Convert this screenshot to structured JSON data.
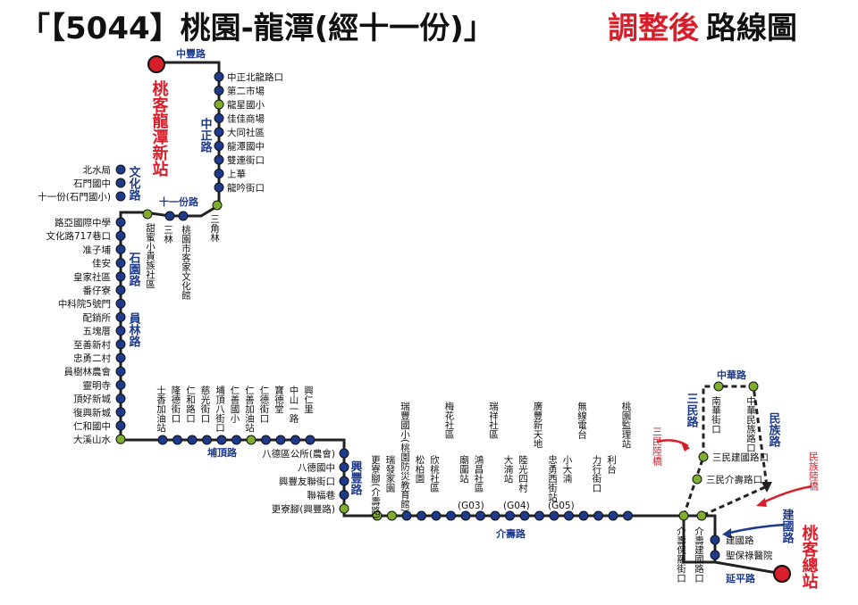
{
  "title": {
    "prefix": "「【5044】桃園-龍潭(經十一份)」",
    "highlight": "調整後",
    "suffix": "路線圖"
  },
  "terminals": {
    "start": "桃客龍潭新站",
    "end": "桃客總站"
  },
  "roads": {
    "zhongfeng": "中豐路",
    "zhongzheng": "中正路",
    "shiyifen": "十一份路",
    "wenhua": "文化路",
    "shiyuan": "石園路",
    "yuanlin": "員林路",
    "puding": "埔頂路",
    "xingfeng": "興豐路",
    "jieshou": "介壽路",
    "zhonghua": "中華路",
    "sanmin": "三民路",
    "minzu": "民族路",
    "jianguo": "建國路",
    "yanping": "延平路"
  },
  "stops": {
    "zhongzheng": [
      "中正北龍路口",
      "第二市場",
      "龍星國小",
      "佳佳商場",
      "大同社區",
      "龍潭國中",
      "雙連街口",
      "上華",
      "龍吟街口"
    ],
    "shiyifen_bottom": [
      "三角林",
      "桃園市客家文化館",
      "三林",
      "甜蜜小貴族社區"
    ],
    "wenhua": [
      "北水局",
      "石門國中",
      "十一份(石門國小)"
    ],
    "shiyuan_yuanlin": [
      "路亞國際中學",
      "文化路717巷口",
      "准子埔",
      "佳安",
      "皇家社區",
      "番仔寮",
      "中科院5號門",
      "配銷所",
      "五塊厝",
      "至善新村",
      "忠勇二村",
      "員樹林農會",
      "靈明寺",
      "頂好新城",
      "復興新城",
      "仁和國中",
      "大溪山水"
    ],
    "puding": [
      "士香加油站",
      "隆德街口",
      "仁和路口",
      "慈光街口",
      "埔頂八街口",
      "仁善國小",
      "仁善加油站",
      "仁德街口",
      "寶德堂",
      "中山一路",
      "興仁里"
    ],
    "xingfeng": [
      "八德區公所(農會)",
      "八德國中",
      "興豐友聯街口",
      "聯福巷",
      "更寮腳(興豐路)"
    ],
    "jieshou": [
      "更寮腳(介壽路)",
      "瑞發家園",
      "瑞豐國小(桃園防災教育館)",
      "松柏園",
      "欣桃社區",
      "梅花社區",
      "廟圍站",
      "鴻昌社區",
      "瑞祥社區",
      "大湳站",
      "陸光四村",
      "廣豐新天地",
      "忠勇西街站",
      "小大湳",
      "無線電台",
      "力行街口",
      "利台",
      "桃園監理站"
    ],
    "jieshou_codes": [
      "(G03)",
      "(G04)",
      "(G05)"
    ],
    "east": [
      "介壽保羅街口",
      "介壽建國路口",
      "建國路",
      "聖保祿醫院",
      "三民介壽路口",
      "三民建國路口",
      "南華街口",
      "中華民族路口"
    ]
  },
  "notes": {
    "sanmin_bridge": "三民陸橋",
    "minzu_bridge": "民族陸橋"
  },
  "colors": {
    "route": "#222222",
    "stop": "#1e3a8a",
    "stop_alt": "#7fae2e",
    "terminal": "#d61f2b",
    "title_highlight": "#d61f2b"
  }
}
